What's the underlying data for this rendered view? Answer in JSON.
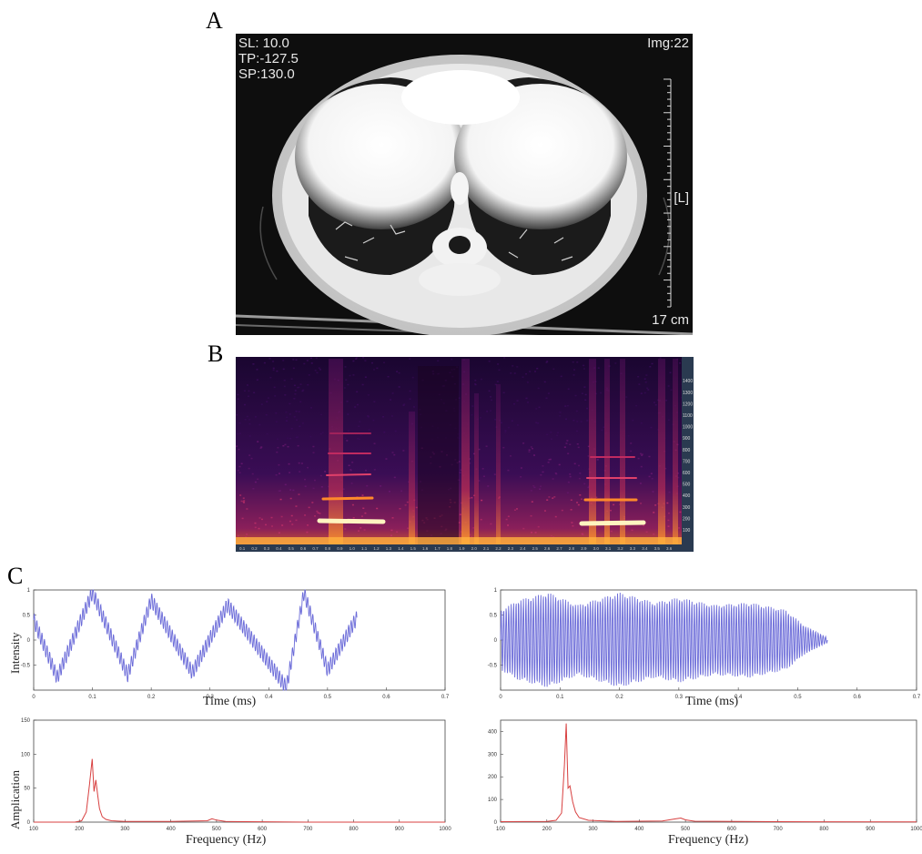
{
  "panels": {
    "a": "A",
    "b": "B",
    "c": "C"
  },
  "ct_scan": {
    "sl": "SL: 10.0",
    "tp": "TP:-127.5",
    "sp": "SP:130.0",
    "img": "Img:22",
    "side_marker": "[L]",
    "scale": "17 cm"
  },
  "spectrogram": {
    "y_ticks": [
      "100",
      "200",
      "300",
      "400",
      "500",
      "600",
      "700",
      "800",
      "900",
      "1000",
      "1100",
      "1200",
      "1300",
      "1400"
    ],
    "x_ticks": [
      "0.1",
      "0.2",
      "0.3",
      "0.4",
      "0.5",
      "0.6",
      "0.7",
      "0.8",
      "0.9",
      "1.0",
      "1.1",
      "1.2",
      "1.3",
      "1.4",
      "1.5",
      "1.6",
      "1.7",
      "1.8",
      "1.9",
      "2.0",
      "2.1",
      "2.2",
      "2.3",
      "2.4",
      "2.5",
      "2.6",
      "2.7",
      "2.8",
      "2.9",
      "3.0",
      "3.1",
      "3.2",
      "3.3",
      "3.4",
      "3.5",
      "3.6"
    ]
  },
  "chart_data": [
    {
      "type": "line",
      "id": "wave-left",
      "xlabel": "Time (ms)",
      "ylabel": "Intensity",
      "xlim": [
        0,
        0.7
      ],
      "ylim": [
        -1,
        1
      ],
      "x_ticks": [
        "0",
        "0.1",
        "0.2",
        "0.3",
        "0.4",
        "0.5",
        "0.6",
        "0.7"
      ],
      "y_ticks": [
        "1",
        "0.5",
        "0",
        "-0.5"
      ],
      "color": "#6a6ad8",
      "envelope": {
        "x": [
          0,
          0.04,
          0.1,
          0.16,
          0.2,
          0.27,
          0.33,
          0.4,
          0.43,
          0.46,
          0.5,
          0.55
        ],
        "y": [
          0.4,
          -0.75,
          0.95,
          -0.7,
          0.8,
          -0.65,
          0.7,
          -0.45,
          -0.95,
          0.95,
          -0.6,
          0.45
        ]
      },
      "carrier_hz": 230,
      "carrier_amp": 0.15
    },
    {
      "type": "line",
      "id": "wave-right",
      "xlabel": "Time (ms)",
      "ylabel": "",
      "xlim": [
        0,
        0.7
      ],
      "ylim": [
        -1,
        1
      ],
      "x_ticks": [
        "0",
        "0.1",
        "0.2",
        "0.3",
        "0.4",
        "0.5",
        "0.6",
        "0.7"
      ],
      "y_ticks": [
        "1",
        "0.5",
        "0",
        "-0.5"
      ],
      "color": "#6a6ad8",
      "envelope": {
        "x": [
          0,
          0.03,
          0.08,
          0.13,
          0.2,
          0.26,
          0.3,
          0.36,
          0.42,
          0.48,
          0.51,
          0.55
        ],
        "y": [
          0.6,
          0.8,
          0.95,
          0.7,
          0.95,
          0.75,
          0.85,
          0.7,
          0.75,
          0.6,
          0.3,
          0.05
        ]
      },
      "carrier_hz": 240,
      "carrier_amp": 1.0
    },
    {
      "type": "line",
      "id": "fft-left",
      "xlabel": "Frequency (Hz)",
      "ylabel": "Amplication",
      "xlim": [
        100,
        1000
      ],
      "ylim": [
        0,
        150
      ],
      "x_ticks": [
        "100",
        "200",
        "300",
        "400",
        "500",
        "600",
        "700",
        "800",
        "900",
        "1000"
      ],
      "y_ticks": [
        "150",
        "100",
        "50",
        "0"
      ],
      "color": "#d84040",
      "x": [
        100,
        190,
        205,
        215,
        222,
        228,
        232,
        236,
        240,
        244,
        250,
        258,
        270,
        300,
        400,
        480,
        490,
        500,
        520,
        700,
        1000
      ],
      "y": [
        0,
        0,
        2,
        15,
        55,
        93,
        45,
        62,
        40,
        20,
        8,
        4,
        2,
        1,
        1,
        2,
        5,
        3,
        1,
        0,
        0
      ]
    },
    {
      "type": "line",
      "id": "fft-right",
      "xlabel": "Frequency (Hz)",
      "ylabel": "",
      "xlim": [
        100,
        1000
      ],
      "ylim": [
        0,
        450
      ],
      "x_ticks": [
        "100",
        "200",
        "300",
        "400",
        "500",
        "600",
        "700",
        "800",
        "900",
        "1000"
      ],
      "y_ticks": [
        "400",
        "300",
        "200",
        "100",
        "0"
      ],
      "color": "#d84040",
      "x": [
        100,
        200,
        220,
        232,
        238,
        242,
        246,
        250,
        256,
        262,
        270,
        290,
        350,
        450,
        480,
        490,
        500,
        520,
        700,
        1000
      ],
      "y": [
        2,
        3,
        8,
        40,
        250,
        435,
        150,
        160,
        90,
        45,
        20,
        8,
        3,
        5,
        15,
        18,
        10,
        4,
        2,
        1
      ]
    }
  ]
}
